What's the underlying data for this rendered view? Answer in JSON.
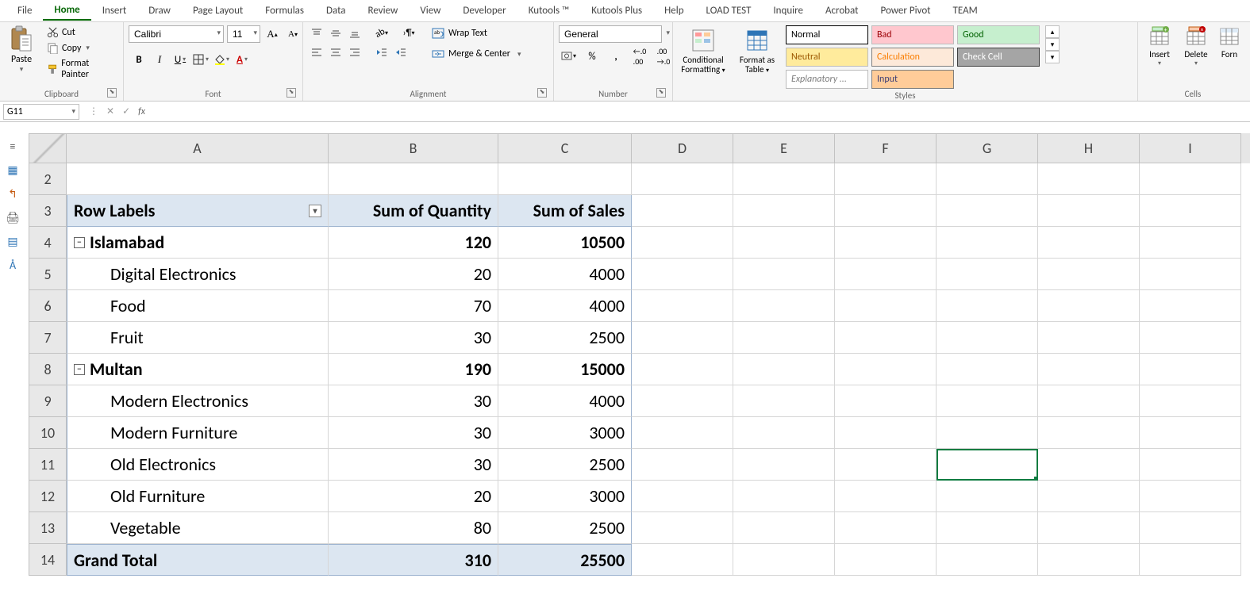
{
  "ribbon_tabs": [
    "File",
    "Home",
    "Insert",
    "Draw",
    "Page Layout",
    "Formulas",
    "Data",
    "Review",
    "View",
    "Developer",
    "Kutools ™",
    "Kutools Plus",
    "Help",
    "LOAD TEST",
    "Inquire",
    "Acrobat",
    "Power Pivot",
    "TEAM"
  ],
  "active_tab": "Home",
  "clipboard": {
    "paste": "Paste",
    "cut": "Cut",
    "copy": "Copy",
    "format_painter": "Format Painter",
    "group_label": "Clipboard"
  },
  "font": {
    "name": "Calibri",
    "size": "11",
    "group_label": "Font"
  },
  "alignment": {
    "wrap": "Wrap Text",
    "merge": "Merge & Center",
    "group_label": "Alignment"
  },
  "number": {
    "format": "General",
    "group_label": "Number"
  },
  "styles": {
    "cond_fmt": "Conditional Formatting",
    "fmt_table": "Format as Table",
    "group_label": "Styles",
    "cells": [
      {
        "label": "Normal",
        "bg": "#ffffff",
        "fg": "#000000",
        "border": "#000000"
      },
      {
        "label": "Bad",
        "bg": "#ffc7ce",
        "fg": "#9c0006"
      },
      {
        "label": "Good",
        "bg": "#c6efce",
        "fg": "#006100"
      },
      {
        "label": "Neutral",
        "bg": "#ffeb9c",
        "fg": "#9c5700"
      },
      {
        "label": "Calculation",
        "bg": "#fde9d9",
        "fg": "#fa7d00",
        "border": "#7f7f7f"
      },
      {
        "label": "Check Cell",
        "bg": "#a5a5a5",
        "fg": "#ffffff",
        "border": "#3f3f3f"
      },
      {
        "label": "Explanatory ...",
        "bg": "#ffffff",
        "fg": "#7f7f7f",
        "italic": true
      },
      {
        "label": "Input",
        "bg": "#ffcc99",
        "fg": "#3f3f76",
        "border": "#7f7f7f"
      }
    ]
  },
  "cells_group": {
    "insert": "Insert",
    "delete": "Delete",
    "format": "Forn",
    "group_label": "Cells"
  },
  "name_box": "G11",
  "columns": [
    "A",
    "B",
    "C",
    "D",
    "E",
    "F",
    "G",
    "H",
    "I"
  ],
  "col_widths": {
    "A": 330,
    "B": 214,
    "C": 168,
    "rest": 128
  },
  "pivot": {
    "header_row_num": 3,
    "headers": [
      "Row Labels",
      "Sum of Quantity",
      "Sum of Sales"
    ],
    "groups": [
      {
        "row": 4,
        "name": "Islamabad",
        "qty": 120,
        "sales": 10500,
        "items": [
          {
            "row": 5,
            "name": "Digital Electronics",
            "qty": 20,
            "sales": 4000
          },
          {
            "row": 6,
            "name": "Food",
            "qty": 70,
            "sales": 4000
          },
          {
            "row": 7,
            "name": "Fruit",
            "qty": 30,
            "sales": 2500
          }
        ]
      },
      {
        "row": 8,
        "name": "Multan",
        "qty": 190,
        "sales": 15000,
        "items": [
          {
            "row": 9,
            "name": "Modern Electronics",
            "qty": 30,
            "sales": 4000
          },
          {
            "row": 10,
            "name": "Modern Furniture",
            "qty": 30,
            "sales": 3000
          },
          {
            "row": 11,
            "name": "Old Electronics",
            "qty": 30,
            "sales": 2500
          },
          {
            "row": 12,
            "name": "Old Furniture",
            "qty": 20,
            "sales": 3000
          },
          {
            "row": 13,
            "name": "Vegetable",
            "qty": 80,
            "sales": 2500
          }
        ]
      }
    ],
    "grand": {
      "row": 14,
      "label": "Grand Total",
      "qty": 310,
      "sales": 25500
    }
  },
  "selected_cell": {
    "row": 11,
    "col": "G"
  }
}
